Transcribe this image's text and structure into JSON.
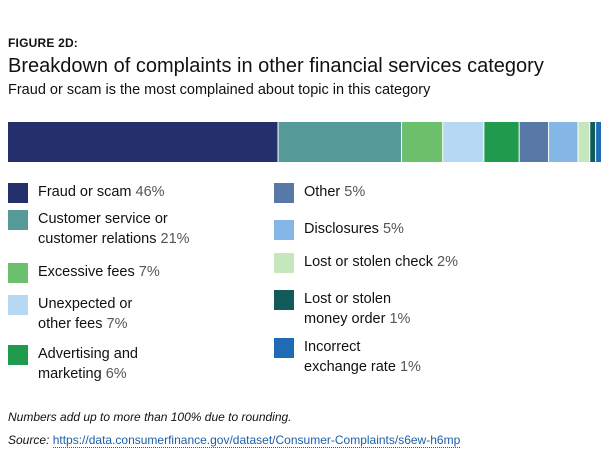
{
  "figure_label": "FIGURE 2D:",
  "chart_data": {
    "type": "bar",
    "stacked": true,
    "orientation": "horizontal",
    "title": "Breakdown of complaints in other financial services category",
    "subtitle": "Fraud or scam is the most complained about topic in this category",
    "unit": "%",
    "legend_position": "below",
    "series": [
      {
        "name": "Fraud or scam",
        "value": 46,
        "label": "46%",
        "color": "#24306b"
      },
      {
        "name": "Customer service or customer relations",
        "value": 21,
        "label": "21%",
        "color": "#569b9a"
      },
      {
        "name": "Excessive fees",
        "value": 7,
        "label": "7%",
        "color": "#6cc06c"
      },
      {
        "name": "Unexpected or other fees",
        "value": 7,
        "label": "7%",
        "color": "#b6d8f2"
      },
      {
        "name": "Advertising and marketing",
        "value": 6,
        "label": "6%",
        "color": "#209a4c"
      },
      {
        "name": "Other",
        "value": 5,
        "label": "5%",
        "color": "#5878a8"
      },
      {
        "name": "Disclosures",
        "value": 5,
        "label": "5%",
        "color": "#84b6e6"
      },
      {
        "name": "Lost or stolen check",
        "value": 2,
        "label": "2%",
        "color": "#c6e6bc"
      },
      {
        "name": "Lost or stolen money order",
        "value": 1,
        "label": "1%",
        "color": "#135a5a"
      },
      {
        "name": "Incorrect exchange rate",
        "value": 1,
        "label": "1%",
        "color": "#206cb4"
      }
    ]
  },
  "legend_lines": [
    {
      "line1": "Fraud or scam",
      "line2": "",
      "pct": "46%"
    },
    {
      "line1": "Customer service or",
      "line2": "customer relations",
      "pct": "21%"
    },
    {
      "line1": "Excessive fees",
      "line2": "",
      "pct": "7%"
    },
    {
      "line1": "Unexpected or",
      "line2": "other fees",
      "pct": "7%"
    },
    {
      "line1": "Advertising and",
      "line2": "marketing",
      "pct": "6%"
    },
    {
      "line1": "Other",
      "line2": "",
      "pct": "5%"
    },
    {
      "line1": "Disclosures",
      "line2": "",
      "pct": "5%"
    },
    {
      "line1": "Lost or stolen check",
      "line2": "",
      "pct": "2%"
    },
    {
      "line1": "Lost or stolen",
      "line2": "money order",
      "pct": "1%"
    },
    {
      "line1": "Incorrect",
      "line2": "exchange rate",
      "pct": "1%"
    }
  ],
  "note": "Numbers add up to more than 100% due to rounding.",
  "source_label": "Source:",
  "source_url": "https://data.consumerfinance.gov/dataset/Consumer-Complaints/s6ew-h6mp"
}
